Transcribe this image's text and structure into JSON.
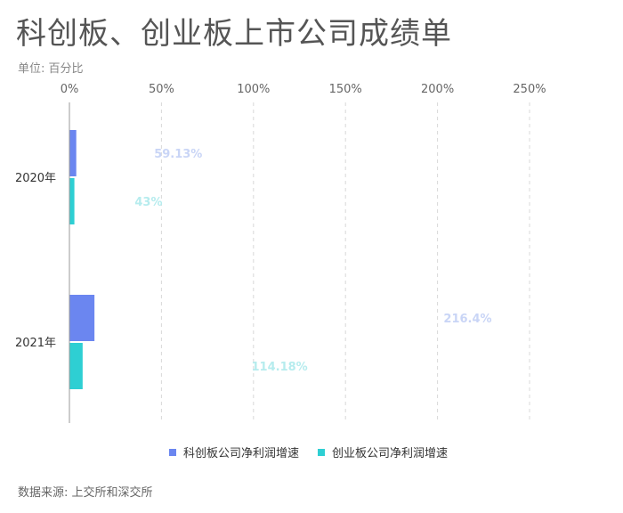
{
  "title": "科创板、创业板上市公司成绩单",
  "unit_label": "单位: 百分比",
  "source": "数据来源: 上交所和深交所",
  "colors": {
    "series1": "#6b86f0",
    "series2": "#2ecfd3",
    "label1": "#c9d5f6",
    "label2": "#b6ecee"
  },
  "chart_data": {
    "type": "bar",
    "orientation": "horizontal",
    "categories": [
      "2020年",
      "2021年"
    ],
    "x_ticks": [
      "0%",
      "50%",
      "100%",
      "150%",
      "200%",
      "250%"
    ],
    "xlim": [
      0,
      250
    ],
    "series": [
      {
        "name": "科创板公司净利润增速",
        "values": [
          59.13,
          216.4
        ],
        "labels": [
          "59.13%",
          "216.4%"
        ]
      },
      {
        "name": "创业板公司净利润增速",
        "values": [
          43,
          114.18
        ],
        "labels": [
          "43%",
          "114.18%"
        ]
      }
    ],
    "legend_position": "bottom",
    "grid": true
  }
}
